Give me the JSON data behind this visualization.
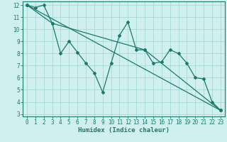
{
  "xlabel": "Humidex (Indice chaleur)",
  "bg_color": "#d0f0f0",
  "grid_color": "#a8d8d8",
  "line_color": "#1a7a6a",
  "spine_color": "#1a7a6a",
  "xlim": [
    -0.5,
    23.5
  ],
  "ylim": [
    2.8,
    12.3
  ],
  "xticks": [
    0,
    1,
    2,
    3,
    4,
    5,
    6,
    7,
    8,
    9,
    10,
    11,
    12,
    13,
    14,
    15,
    16,
    17,
    18,
    19,
    20,
    21,
    22,
    23
  ],
  "yticks": [
    3,
    4,
    5,
    6,
    7,
    8,
    9,
    10,
    11,
    12
  ],
  "series1_x": [
    0,
    1,
    2,
    3,
    4,
    5,
    6,
    7,
    8,
    9,
    10,
    11,
    12,
    13,
    14,
    15,
    16,
    17,
    18,
    19,
    20,
    21,
    22,
    23
  ],
  "series1_y": [
    12,
    11.8,
    12,
    10.5,
    8.0,
    9.0,
    8.1,
    7.2,
    6.4,
    4.8,
    7.2,
    9.5,
    10.6,
    8.3,
    8.3,
    7.2,
    7.3,
    8.3,
    8.0,
    7.2,
    6.0,
    5.9,
    4.0,
    3.3
  ],
  "series2_x": [
    0,
    23
  ],
  "series2_y": [
    12,
    3.3
  ],
  "series3_x": [
    0,
    3,
    14,
    23
  ],
  "series3_y": [
    12,
    10.5,
    8.3,
    3.3
  ],
  "tick_fontsize": 5.5,
  "xlabel_fontsize": 6.5,
  "marker": "D",
  "markersize": 2.0,
  "linewidth": 0.9
}
